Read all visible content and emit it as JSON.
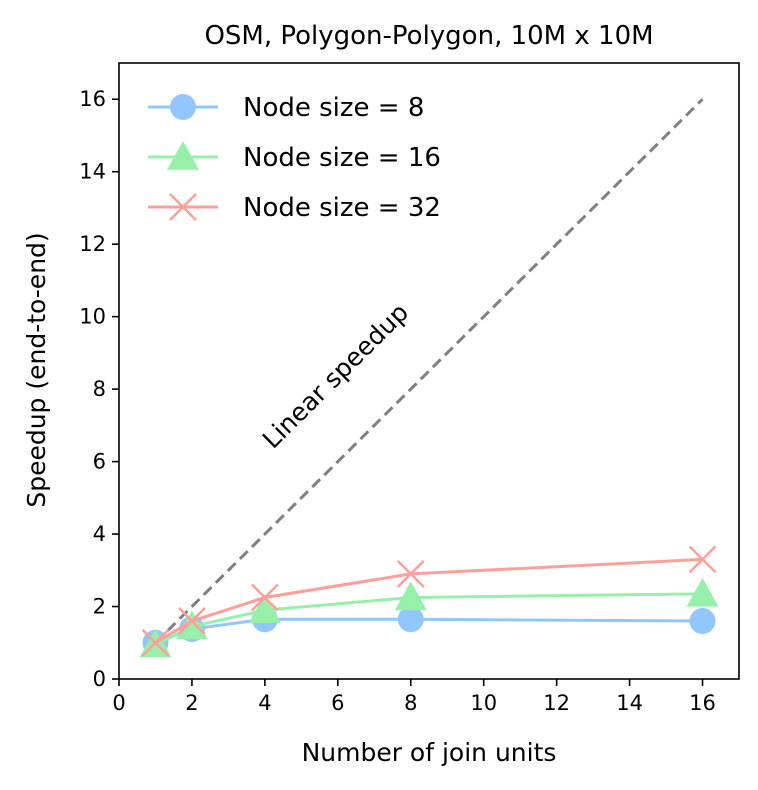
{
  "chart_data": {
    "type": "line",
    "title": "OSM, Polygon-Polygon, 10M x 10M",
    "xlabel": "Number of join units",
    "ylabel": "Speedup (end-to-end)",
    "xlim": [
      0,
      17
    ],
    "ylim": [
      0,
      17
    ],
    "xticks": [
      0,
      2,
      4,
      6,
      8,
      10,
      12,
      14,
      16
    ],
    "yticks": [
      0,
      2,
      4,
      6,
      8,
      10,
      12,
      14,
      16
    ],
    "x": [
      1,
      2,
      4,
      8,
      16
    ],
    "series": [
      {
        "name": "Node size = 8",
        "values": [
          1.0,
          1.38,
          1.65,
          1.65,
          1.6
        ],
        "color": "#92c6ff",
        "marker": "circle"
      },
      {
        "name": "Node size = 16",
        "values": [
          0.95,
          1.45,
          1.9,
          2.25,
          2.35
        ],
        "color": "#97f0aa",
        "marker": "triangle"
      },
      {
        "name": "Node size = 32",
        "values": [
          1.0,
          1.6,
          2.25,
          2.9,
          3.3
        ],
        "color": "#ff9f9a",
        "marker": "x"
      }
    ],
    "reference_line": {
      "label": "Linear speedup",
      "x": [
        1,
        16
      ],
      "y": [
        1,
        16
      ],
      "color": "#808080",
      "style": "dashed"
    },
    "legend_position": "upper-left",
    "grid": false
  }
}
